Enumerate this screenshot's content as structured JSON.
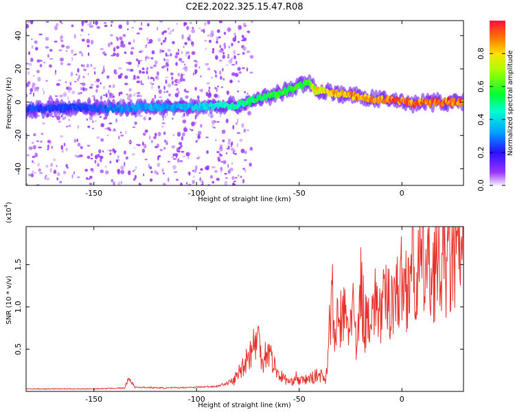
{
  "title": "C2E2.2022.325.15.47.R08",
  "chart_data": [
    {
      "type": "heatmap",
      "xlabel": "Height of straight line (km)",
      "ylabel": "Frequency (Hz)",
      "xlim": [
        -183,
        30
      ],
      "ylim": [
        -50,
        49
      ],
      "xticks": [
        -150,
        -100,
        -50,
        0
      ],
      "yticks": [
        -40,
        -20,
        0,
        20,
        40
      ],
      "ridge": {
        "x": [
          -183,
          -170,
          -155,
          -140,
          -125,
          -110,
          -100,
          -90,
          -80,
          -70,
          -60,
          -50,
          -45,
          -42,
          -35,
          -25,
          -15,
          -5,
          0,
          5,
          10,
          20,
          30
        ],
        "freq": [
          -4,
          -4,
          -3,
          -4,
          -3,
          -3,
          -3,
          -2,
          -2,
          2,
          5,
          10,
          12,
          7,
          6,
          4,
          2,
          1,
          1,
          -1,
          0,
          0,
          0
        ],
        "amplitude": [
          0.25,
          0.25,
          0.25,
          0.3,
          0.35,
          0.35,
          0.4,
          0.45,
          0.5,
          0.55,
          0.6,
          0.6,
          0.62,
          0.8,
          0.85,
          0.9,
          0.92,
          0.95,
          0.95,
          0.95,
          0.95,
          0.95,
          0.95
        ]
      },
      "colorbar": {
        "label": "Normalized spectral amplitude",
        "range": [
          0.0,
          1.0
        ],
        "ticks": [
          "0.0",
          "0.2",
          "0.4",
          "0.6",
          "0.8"
        ]
      }
    },
    {
      "type": "line",
      "xlabel": "Height of straight line (km)",
      "ylabel": "SNR (10 * v/v)",
      "y_multiplier": "(x10",
      "y_multiplier_exp": "4",
      "xlim": [
        -183,
        30
      ],
      "ylim": [
        0,
        1.95
      ],
      "xticks": [
        -150,
        -100,
        -50,
        0
      ],
      "yticks": [
        "0.5",
        "1.0",
        "1.5"
      ],
      "color": "#e8302a",
      "x": [
        -183,
        -170,
        -150,
        -135,
        -133,
        -130,
        -115,
        -100,
        -90,
        -82,
        -78,
        -75,
        -72,
        -70,
        -68,
        -65,
        -62,
        -60,
        -57,
        -54,
        -52,
        -50,
        -45,
        -40,
        -37,
        -35,
        -34,
        -33,
        -32,
        -30,
        -28,
        -26,
        -24,
        -22,
        -20,
        -18,
        -16,
        -14,
        -12,
        -10,
        -8,
        -6,
        -4,
        -2,
        0,
        2,
        4,
        5,
        6,
        7,
        8,
        10,
        12,
        14,
        16,
        18,
        20,
        22,
        24,
        26,
        28,
        30
      ],
      "y": [
        0.03,
        0.03,
        0.03,
        0.04,
        0.16,
        0.05,
        0.04,
        0.05,
        0.06,
        0.12,
        0.28,
        0.42,
        0.55,
        0.64,
        0.38,
        0.5,
        0.3,
        0.2,
        0.15,
        0.1,
        0.18,
        0.12,
        0.15,
        0.2,
        0.15,
        0.85,
        1.2,
        0.6,
        0.75,
        0.85,
        0.9,
        0.7,
        1.1,
        0.4,
        1.25,
        0.8,
        0.95,
        1.0,
        1.05,
        0.9,
        1.1,
        1.05,
        1.2,
        1.15,
        1.3,
        1.25,
        1.4,
        1.95,
        1.1,
        1.35,
        1.45,
        1.5,
        1.45,
        1.4,
        1.5,
        1.45,
        1.5,
        1.55,
        1.5,
        1.6,
        1.6,
        1.65
      ]
    }
  ]
}
